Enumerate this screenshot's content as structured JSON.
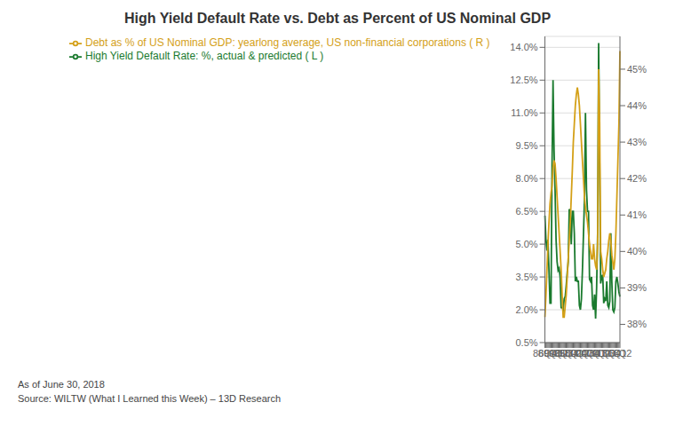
{
  "chart_data": {
    "type": "line",
    "title": "High Yield Default Rate vs. Debt as Percent of US Nominal GDP",
    "annotations": [
      "As of June 30, 2018",
      "Source: WILTW (What I Learned this Week) – 13D Research"
    ],
    "categories": [
      "86Q4",
      null,
      null,
      null,
      null,
      "89Q1",
      null,
      null,
      null,
      null,
      null,
      "91Q2",
      null,
      null,
      null,
      null,
      "93Q3",
      null,
      null,
      null,
      null,
      "95Q4",
      null,
      null,
      null,
      null,
      "98Q1",
      null,
      null,
      null,
      null,
      null,
      "00Q2",
      null,
      null,
      null,
      null,
      "02Q3",
      null,
      null,
      null,
      null,
      "04Q4",
      null,
      null,
      null,
      null,
      null,
      "07Q1",
      null,
      null,
      null,
      null,
      "09Q2",
      null,
      null,
      null,
      null,
      "11Q3",
      null,
      null,
      null,
      null,
      "13Q4",
      null,
      null,
      null,
      null,
      null,
      "16Q1",
      null,
      null,
      null,
      null,
      "18Q2"
    ],
    "series": [
      {
        "name": "High Yield Default Rate: %, actual & predicted ( L )",
        "color": "#1a7a2e",
        "values": [
          6.3,
          5.2,
          4.7,
          5.2,
          3.8,
          2.3,
          2.3,
          8.5,
          12.5,
          9.3,
          7.5,
          5.2,
          4.2,
          3.8,
          3.9,
          3.5,
          2.1,
          2.1,
          2.0,
          2.5,
          2.6,
          3.1,
          3.7,
          4.2,
          6.6,
          6.5,
          5.0,
          6.5,
          6.5,
          5.5,
          3.3,
          3.5,
          3.3,
          3.3,
          2.2,
          2.0,
          2.5,
          3.8,
          5.4,
          7.0,
          11.0,
          7.5,
          6.5,
          6.5,
          3.4,
          3.3,
          3.5,
          2.2,
          2.0,
          2.7,
          1.6,
          3.0,
          5.5,
          14.2,
          8.5,
          3.2,
          3.5,
          3.6,
          2.3,
          2.5,
          2.4,
          3.3,
          2.2,
          2.1,
          2.4,
          5.5,
          3.3,
          2.0,
          1.9,
          2.1,
          3.3,
          3.5,
          3.2,
          2.8,
          2.6
        ]
      },
      {
        "name": "Debt as % of US Nominal GDP: yearlong average, US non-financial corporations ( R )",
        "color": "#d4a017",
        "axis": "y2",
        "values": [
          38.2,
          38.8,
          39.5,
          40.2,
          40.8,
          41.3,
          41.6,
          41.8,
          42.3,
          42.5,
          42.4,
          42.0,
          41.5,
          41.0,
          40.5,
          40.0,
          39.5,
          38.8,
          38.2,
          38.2,
          38.5,
          38.8,
          39.3,
          39.8,
          40.3,
          40.8,
          41.5,
          42.2,
          43.0,
          43.5,
          44.0,
          44.3,
          44.5,
          44.3,
          44.0,
          43.5,
          43.0,
          42.5,
          42.0,
          41.5,
          41.2,
          41.0,
          40.8,
          40.5,
          40.2,
          40.0,
          39.8,
          39.8,
          40.2,
          39.8,
          39.6,
          39.5,
          40.2,
          45.0,
          43.5,
          40.0,
          39.8,
          39.5,
          39.3,
          39.4,
          39.5,
          39.8,
          40.0,
          40.3,
          40.5,
          40.3,
          39.9,
          39.7,
          39.5,
          39.8,
          40.5,
          41.5,
          42.5,
          43.5,
          45.5
        ]
      }
    ],
    "ylim": [
      0.5,
      14.5
    ],
    "yticks": [
      {
        "value": 0.5,
        "label": "0.5%"
      },
      {
        "value": 2.0,
        "label": "2.0%"
      },
      {
        "value": 3.5,
        "label": "3.5%"
      },
      {
        "value": 5.0,
        "label": "5.0%"
      },
      {
        "value": 6.5,
        "label": "6.5%"
      },
      {
        "value": 8.0,
        "label": "8.0%"
      },
      {
        "value": 9.5,
        "label": "9.5%"
      },
      {
        "value": 11.0,
        "label": "11.0%"
      },
      {
        "value": 12.5,
        "label": "12.5%"
      },
      {
        "value": 14.0,
        "label": "14.0%"
      }
    ],
    "y2lim": [
      37.5,
      45.9
    ],
    "y2ticks": [
      {
        "value": 38,
        "label": "38%"
      },
      {
        "value": 39,
        "label": "39%"
      },
      {
        "value": 40,
        "label": "40%"
      },
      {
        "value": 41,
        "label": "41%"
      },
      {
        "value": 42,
        "label": "42%"
      },
      {
        "value": 43,
        "label": "43%"
      },
      {
        "value": 44,
        "label": "44%"
      },
      {
        "value": 45,
        "label": "45%"
      }
    ],
    "grid": true
  }
}
